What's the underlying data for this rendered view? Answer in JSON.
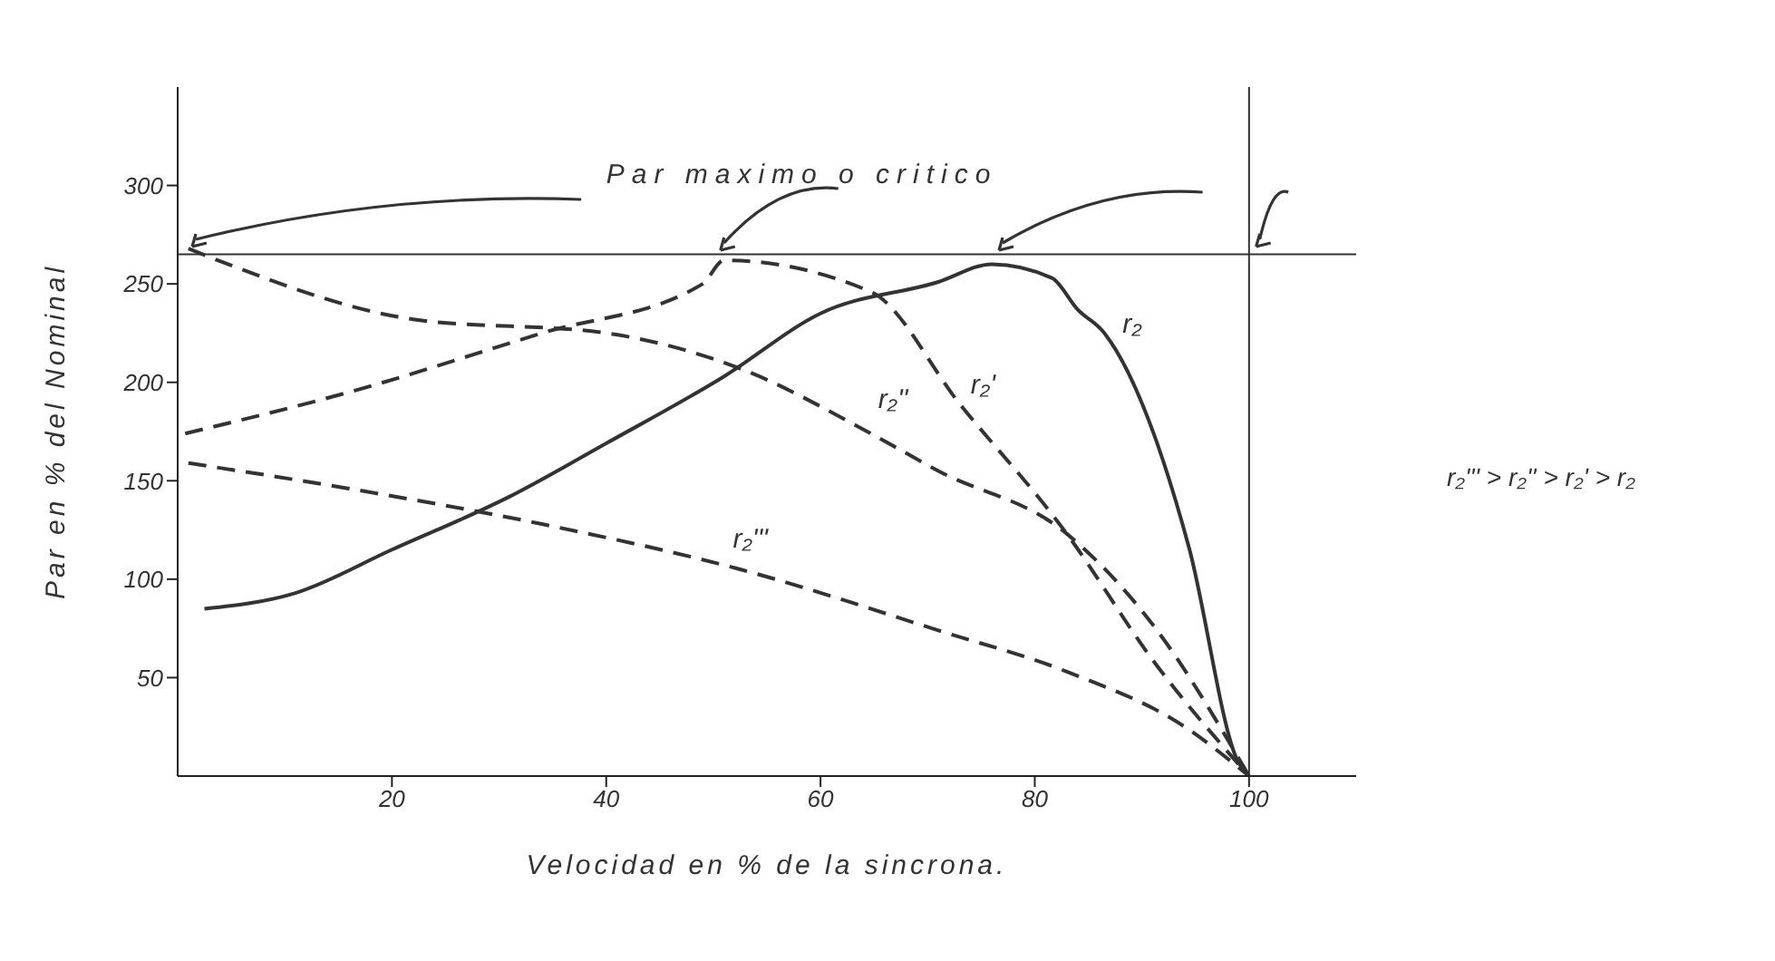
{
  "chart_data": {
    "type": "line",
    "xlabel": "Velocidad en % de la sincrona.",
    "ylabel": "Par en % del Nominal",
    "annotations": [
      "Par maximo o critico",
      "r₂''' > r₂'' > r₂' > r₂"
    ],
    "xlim": [
      0,
      110
    ],
    "ylim": [
      0,
      350
    ],
    "xticks": [
      20,
      40,
      60,
      80,
      100
    ],
    "yticks": [
      50,
      100,
      150,
      200,
      250,
      300
    ],
    "grid": false,
    "marker": "none",
    "ref_lines": [
      {
        "axis": "y",
        "value": 265,
        "color": "#333333"
      },
      {
        "axis": "x",
        "value": 100,
        "color": "#333333"
      }
    ],
    "series": [
      {
        "name": "r₂",
        "color": "#333333",
        "line_style": "solid",
        "x": [
          2.5,
          11,
          20,
          31,
          40,
          51,
          60,
          71,
          76,
          81.6,
          84,
          86.5,
          94.4,
          99,
          100
        ],
        "values": [
          85,
          93,
          115,
          142,
          169,
          203,
          235,
          251,
          260,
          253,
          237,
          225,
          116,
          7,
          0
        ]
      },
      {
        "name": "r₂'",
        "color": "#333333",
        "line_style": "dashed",
        "x": [
          0.7,
          16,
          34,
          49,
          51,
          64.7,
          73,
          83,
          91,
          100
        ],
        "values": [
          174,
          195,
          225,
          250,
          262,
          246,
          189,
          123,
          59,
          0
        ]
      },
      {
        "name": "r₂''",
        "color": "#333333",
        "line_style": "dashed",
        "x": [
          1,
          4.7,
          22,
          40,
          52.5,
          64.7,
          71,
          83,
          91,
          100
        ],
        "values": [
          268,
          260,
          232,
          225,
          207,
          174,
          155,
          123,
          77,
          0
        ]
      },
      {
        "name": "r₂'''",
        "color": "#333333",
        "line_style": "dashed",
        "x": [
          1,
          16,
          34,
          52.5,
          71,
          83,
          94,
          100
        ],
        "values": [
          159,
          146,
          128,
          105,
          74,
          53,
          25,
          0
        ]
      }
    ]
  }
}
